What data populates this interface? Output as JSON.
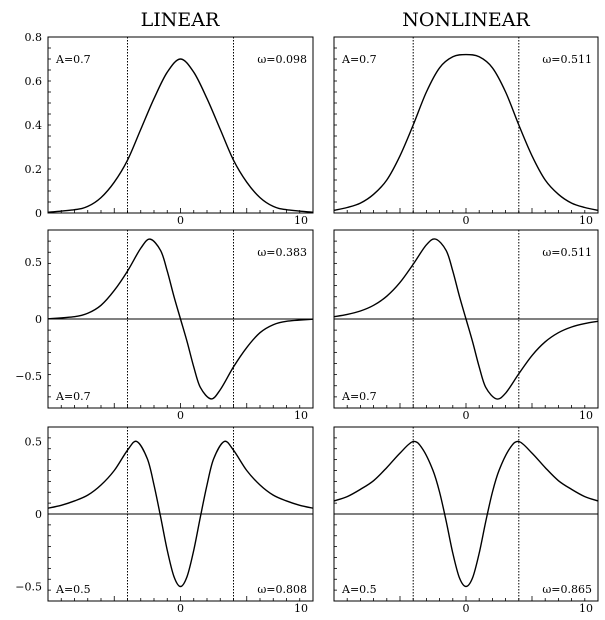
{
  "column_titles": [
    "LINEAR",
    "NONLINEAR"
  ],
  "chart_data": [
    {
      "type": "line",
      "row": 0,
      "col": 0,
      "xlim": [
        -10,
        10
      ],
      "ylim": [
        0,
        0.8
      ],
      "x_ticks": [
        {
          "v": 0,
          "label": "0"
        },
        {
          "v": 10,
          "label": "10"
        }
      ],
      "y_ticks": [
        {
          "v": 0,
          "label": "0"
        },
        {
          "v": 0.2,
          "label": "0.2"
        },
        {
          "v": 0.4,
          "label": "0.4"
        },
        {
          "v": 0.6,
          "label": "0.6"
        },
        {
          "v": 0.8,
          "label": "0.8"
        }
      ],
      "vlines": [
        -4,
        4
      ],
      "baseline": false,
      "annotations": [
        {
          "text": "A=0.7",
          "pos": "top-left"
        },
        {
          "text": "ω=0.098",
          "pos": "top-right"
        }
      ],
      "series": [
        {
          "points": [
            [
              -10,
              0.003
            ],
            [
              -8,
              0.015
            ],
            [
              -7,
              0.03
            ],
            [
              -6,
              0.07
            ],
            [
              -5,
              0.14
            ],
            [
              -4,
              0.24
            ],
            [
              -3,
              0.38
            ],
            [
              -2,
              0.52
            ],
            [
              -1,
              0.64
            ],
            [
              0,
              0.7
            ],
            [
              1,
              0.64
            ],
            [
              2,
              0.52
            ],
            [
              3,
              0.38
            ],
            [
              4,
              0.24
            ],
            [
              5,
              0.14
            ],
            [
              6,
              0.07
            ],
            [
              7,
              0.03
            ],
            [
              8,
              0.015
            ],
            [
              10,
              0.003
            ]
          ]
        }
      ]
    },
    {
      "type": "line",
      "row": 0,
      "col": 1,
      "xlim": [
        -10,
        10
      ],
      "ylim": [
        0,
        0.8
      ],
      "x_ticks": [
        {
          "v": 0,
          "label": "0"
        },
        {
          "v": 10,
          "label": "10"
        }
      ],
      "y_ticks": [],
      "vlines": [
        -4,
        4
      ],
      "baseline": false,
      "annotations": [
        {
          "text": "A=0.7",
          "pos": "top-left"
        },
        {
          "text": "ω=0.511",
          "pos": "top-right"
        }
      ],
      "series": [
        {
          "points": [
            [
              -10,
              0.012
            ],
            [
              -9,
              0.025
            ],
            [
              -8,
              0.045
            ],
            [
              -7,
              0.085
            ],
            [
              -6,
              0.15
            ],
            [
              -5,
              0.26
            ],
            [
              -4,
              0.4
            ],
            [
              -3,
              0.55
            ],
            [
              -2,
              0.66
            ],
            [
              -1,
              0.71
            ],
            [
              0,
              0.72
            ],
            [
              1,
              0.71
            ],
            [
              2,
              0.66
            ],
            [
              3,
              0.55
            ],
            [
              4,
              0.4
            ],
            [
              5,
              0.26
            ],
            [
              6,
              0.15
            ],
            [
              7,
              0.085
            ],
            [
              8,
              0.045
            ],
            [
              9,
              0.025
            ],
            [
              10,
              0.012
            ]
          ]
        }
      ]
    },
    {
      "type": "line",
      "row": 1,
      "col": 0,
      "xlim": [
        -10,
        10
      ],
      "ylim": [
        -0.78,
        0.78
      ],
      "x_ticks": [
        {
          "v": 0,
          "label": "0"
        },
        {
          "v": 10,
          "label": "10"
        }
      ],
      "y_ticks": [
        {
          "v": 0.5,
          "label": "0.5"
        },
        {
          "v": 0,
          "label": "0"
        },
        {
          "v": -0.5,
          "label": "−0.5"
        }
      ],
      "vlines": [
        -4,
        4
      ],
      "baseline": true,
      "annotations": [
        {
          "text": "ω=0.383",
          "pos": "top-right"
        },
        {
          "text": "A=0.7",
          "pos": "bottom-left"
        }
      ],
      "series": [
        {
          "points": [
            [
              -10,
              0.002
            ],
            [
              -8,
              0.02
            ],
            [
              -7,
              0.05
            ],
            [
              -6,
              0.12
            ],
            [
              -5,
              0.25
            ],
            [
              -4,
              0.42
            ],
            [
              -3,
              0.62
            ],
            [
              -2.3,
              0.7
            ],
            [
              -1.5,
              0.6
            ],
            [
              -1,
              0.42
            ],
            [
              -0.5,
              0.2
            ],
            [
              0,
              0
            ],
            [
              0.5,
              -0.2
            ],
            [
              1,
              -0.42
            ],
            [
              1.5,
              -0.6
            ],
            [
              2.3,
              -0.7
            ],
            [
              3,
              -0.62
            ],
            [
              4,
              -0.42
            ],
            [
              5,
              -0.25
            ],
            [
              6,
              -0.12
            ],
            [
              7,
              -0.05
            ],
            [
              8,
              -0.02
            ],
            [
              10,
              -0.002
            ]
          ]
        }
      ]
    },
    {
      "type": "line",
      "row": 1,
      "col": 1,
      "xlim": [
        -10,
        10
      ],
      "ylim": [
        -0.78,
        0.78
      ],
      "x_ticks": [
        {
          "v": 0,
          "label": "0"
        },
        {
          "v": 10,
          "label": "10"
        }
      ],
      "y_ticks": [],
      "vlines": [
        -4,
        4
      ],
      "baseline": true,
      "annotations": [
        {
          "text": "ω=0.511",
          "pos": "top-right"
        },
        {
          "text": "A=0.7",
          "pos": "bottom-left"
        }
      ],
      "series": [
        {
          "points": [
            [
              -10,
              0.02
            ],
            [
              -9,
              0.04
            ],
            [
              -8,
              0.07
            ],
            [
              -7,
              0.12
            ],
            [
              -6,
              0.2
            ],
            [
              -5,
              0.32
            ],
            [
              -4,
              0.48
            ],
            [
              -3,
              0.65
            ],
            [
              -2.3,
              0.7
            ],
            [
              -1.5,
              0.6
            ],
            [
              -1,
              0.42
            ],
            [
              -0.5,
              0.2
            ],
            [
              0,
              0
            ],
            [
              0.5,
              -0.2
            ],
            [
              1,
              -0.42
            ],
            [
              1.5,
              -0.6
            ],
            [
              2.3,
              -0.7
            ],
            [
              3,
              -0.65
            ],
            [
              4,
              -0.48
            ],
            [
              5,
              -0.32
            ],
            [
              6,
              -0.2
            ],
            [
              7,
              -0.12
            ],
            [
              8,
              -0.07
            ],
            [
              9,
              -0.04
            ],
            [
              10,
              -0.02
            ]
          ]
        }
      ]
    },
    {
      "type": "line",
      "row": 2,
      "col": 0,
      "xlim": [
        -10,
        10
      ],
      "ylim": [
        -0.6,
        0.6
      ],
      "x_ticks": [
        {
          "v": 0,
          "label": "0"
        },
        {
          "v": 10,
          "label": "10"
        }
      ],
      "y_ticks": [
        {
          "v": 0.5,
          "label": "0.5"
        },
        {
          "v": 0,
          "label": "0"
        },
        {
          "v": -0.5,
          "label": "−0.5"
        }
      ],
      "vlines": [
        -4,
        4
      ],
      "baseline": true,
      "annotations": [
        {
          "text": "A=0.5",
          "pos": "bottom-left"
        },
        {
          "text": "ω=0.808",
          "pos": "bottom-right"
        }
      ],
      "series": [
        {
          "points": [
            [
              -10,
              0.04
            ],
            [
              -9,
              0.06
            ],
            [
              -8,
              0.09
            ],
            [
              -7,
              0.13
            ],
            [
              -6,
              0.2
            ],
            [
              -5,
              0.3
            ],
            [
              -4,
              0.44
            ],
            [
              -3.3,
              0.5
            ],
            [
              -2.5,
              0.38
            ],
            [
              -2,
              0.2
            ],
            [
              -1.5,
              -0.02
            ],
            [
              -1,
              -0.25
            ],
            [
              -0.5,
              -0.43
            ],
            [
              0,
              -0.5
            ],
            [
              0.5,
              -0.43
            ],
            [
              1,
              -0.25
            ],
            [
              1.5,
              -0.02
            ],
            [
              2,
              0.2
            ],
            [
              2.5,
              0.38
            ],
            [
              3.3,
              0.5
            ],
            [
              4,
              0.44
            ],
            [
              5,
              0.3
            ],
            [
              6,
              0.2
            ],
            [
              7,
              0.13
            ],
            [
              8,
              0.09
            ],
            [
              9,
              0.06
            ],
            [
              10,
              0.04
            ]
          ]
        }
      ]
    },
    {
      "type": "line",
      "row": 2,
      "col": 1,
      "xlim": [
        -10,
        10
      ],
      "ylim": [
        -0.6,
        0.6
      ],
      "x_ticks": [
        {
          "v": 0,
          "label": "0"
        },
        {
          "v": 10,
          "label": "10"
        }
      ],
      "y_ticks": [],
      "vlines": [
        -4,
        4
      ],
      "baseline": true,
      "annotations": [
        {
          "text": "A=0.5",
          "pos": "bottom-left"
        },
        {
          "text": "ω=0.865",
          "pos": "bottom-right"
        }
      ],
      "series": [
        {
          "points": [
            [
              -10,
              0.09
            ],
            [
              -9,
              0.12
            ],
            [
              -8,
              0.17
            ],
            [
              -7,
              0.23
            ],
            [
              -6,
              0.32
            ],
            [
              -5,
              0.42
            ],
            [
              -4,
              0.5
            ],
            [
              -3.3,
              0.45
            ],
            [
              -2.5,
              0.3
            ],
            [
              -2,
              0.15
            ],
            [
              -1.5,
              -0.05
            ],
            [
              -1,
              -0.27
            ],
            [
              -0.5,
              -0.44
            ],
            [
              0,
              -0.5
            ],
            [
              0.5,
              -0.44
            ],
            [
              1,
              -0.27
            ],
            [
              1.5,
              -0.05
            ],
            [
              2,
              0.15
            ],
            [
              2.5,
              0.3
            ],
            [
              3.3,
              0.45
            ],
            [
              4,
              0.5
            ],
            [
              5,
              0.42
            ],
            [
              6,
              0.32
            ],
            [
              7,
              0.23
            ],
            [
              8,
              0.17
            ],
            [
              9,
              0.12
            ],
            [
              10,
              0.09
            ]
          ]
        }
      ]
    }
  ]
}
